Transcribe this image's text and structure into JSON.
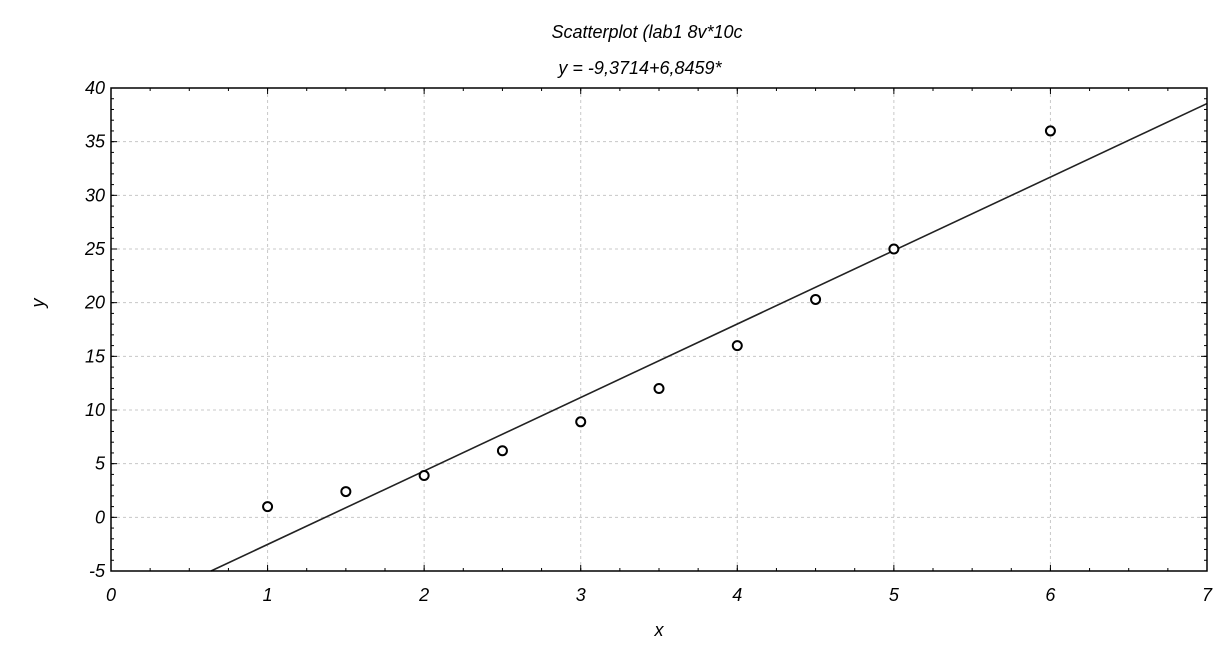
{
  "chart_data": {
    "type": "scatter",
    "title": "Scatterplot (lab1 8v*10c",
    "subtitle": "y = -9,3714+6,8459*",
    "xlabel": "x",
    "ylabel": "y",
    "xlim": [
      0,
      7
    ],
    "ylim": [
      -5,
      40
    ],
    "x_ticks": [
      "0",
      "1",
      "2",
      "3",
      "4",
      "5",
      "6",
      "7"
    ],
    "y_ticks": [
      "-5",
      "0",
      "5",
      "10",
      "15",
      "20",
      "25",
      "30",
      "35",
      "40"
    ],
    "grid": true,
    "points": [
      {
        "x": 1.0,
        "y": 1.0
      },
      {
        "x": 1.5,
        "y": 2.4
      },
      {
        "x": 2.0,
        "y": 3.9
      },
      {
        "x": 2.5,
        "y": 6.2
      },
      {
        "x": 3.0,
        "y": 8.9
      },
      {
        "x": 3.5,
        "y": 12.0
      },
      {
        "x": 4.0,
        "y": 16.0
      },
      {
        "x": 4.5,
        "y": 20.3
      },
      {
        "x": 5.0,
        "y": 25.0
      },
      {
        "x": 6.0,
        "y": 36.0
      }
    ],
    "fit_line": {
      "intercept": -9.3714,
      "slope": 6.8459
    }
  }
}
